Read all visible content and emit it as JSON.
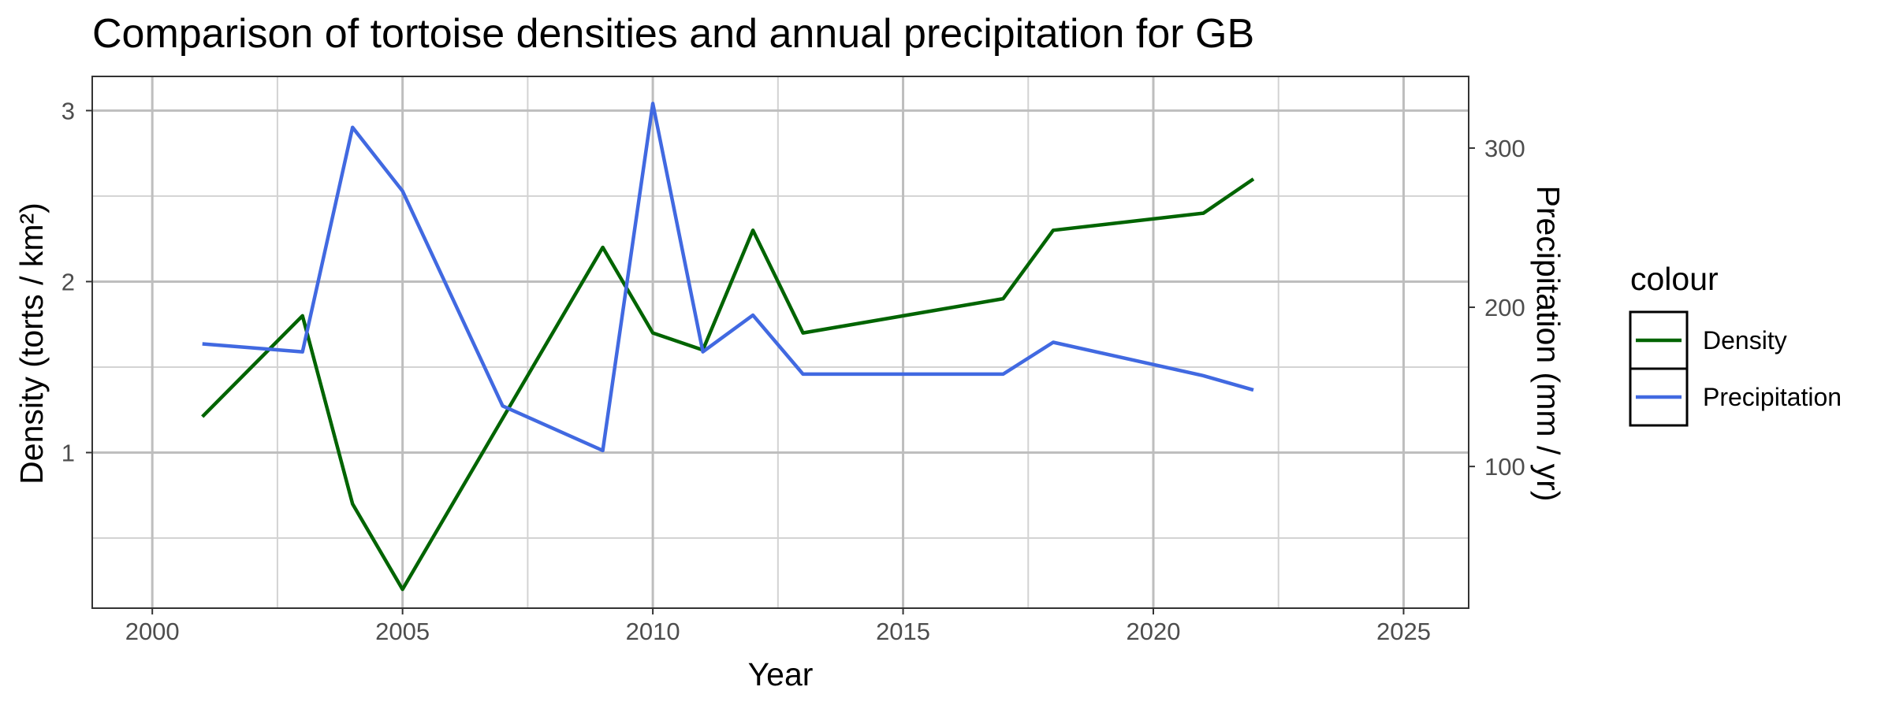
{
  "chart_data": {
    "type": "line",
    "title": "Comparison of tortoise densities and annual precipitation for GB",
    "xlabel": "Year",
    "ylabel": "Density (torts / km²)",
    "y2label": "Precipitation (mm / yr)",
    "xlim": [
      1998.8,
      2026.3
    ],
    "ylim": [
      0.09,
      3.2
    ],
    "y2lim": [
      11,
      345
    ],
    "x_ticks": [
      2000,
      2005,
      2010,
      2015,
      2020,
      2025
    ],
    "y_ticks": [
      1,
      2,
      3
    ],
    "y2_ticks": [
      100,
      200,
      300
    ],
    "grid": true,
    "legend": {
      "title": "colour",
      "position": "right",
      "items": [
        "Density",
        "Precipitation"
      ]
    },
    "series": [
      {
        "name": "Density",
        "color": "#006400",
        "axis": "left",
        "x": [
          2001,
          2003,
          2004,
          2005,
          2007,
          2009,
          2010,
          2011,
          2012,
          2013,
          2017,
          2018,
          2021,
          2022
        ],
        "values": [
          1.21,
          1.8,
          0.7,
          0.2,
          1.2,
          2.2,
          1.7,
          1.6,
          2.3,
          1.7,
          1.9,
          2.3,
          2.4,
          2.6
        ]
      },
      {
        "name": "Precipitation",
        "color": "#4169E1",
        "axis": "right",
        "x": [
          2001,
          2003,
          2004,
          2005,
          2007,
          2009,
          2010,
          2011,
          2012,
          2013,
          2017,
          2018,
          2021,
          2022
        ],
        "values": [
          177,
          172,
          313,
          273,
          138,
          110,
          328,
          172,
          195,
          158,
          158,
          178,
          157,
          148
        ]
      }
    ]
  }
}
